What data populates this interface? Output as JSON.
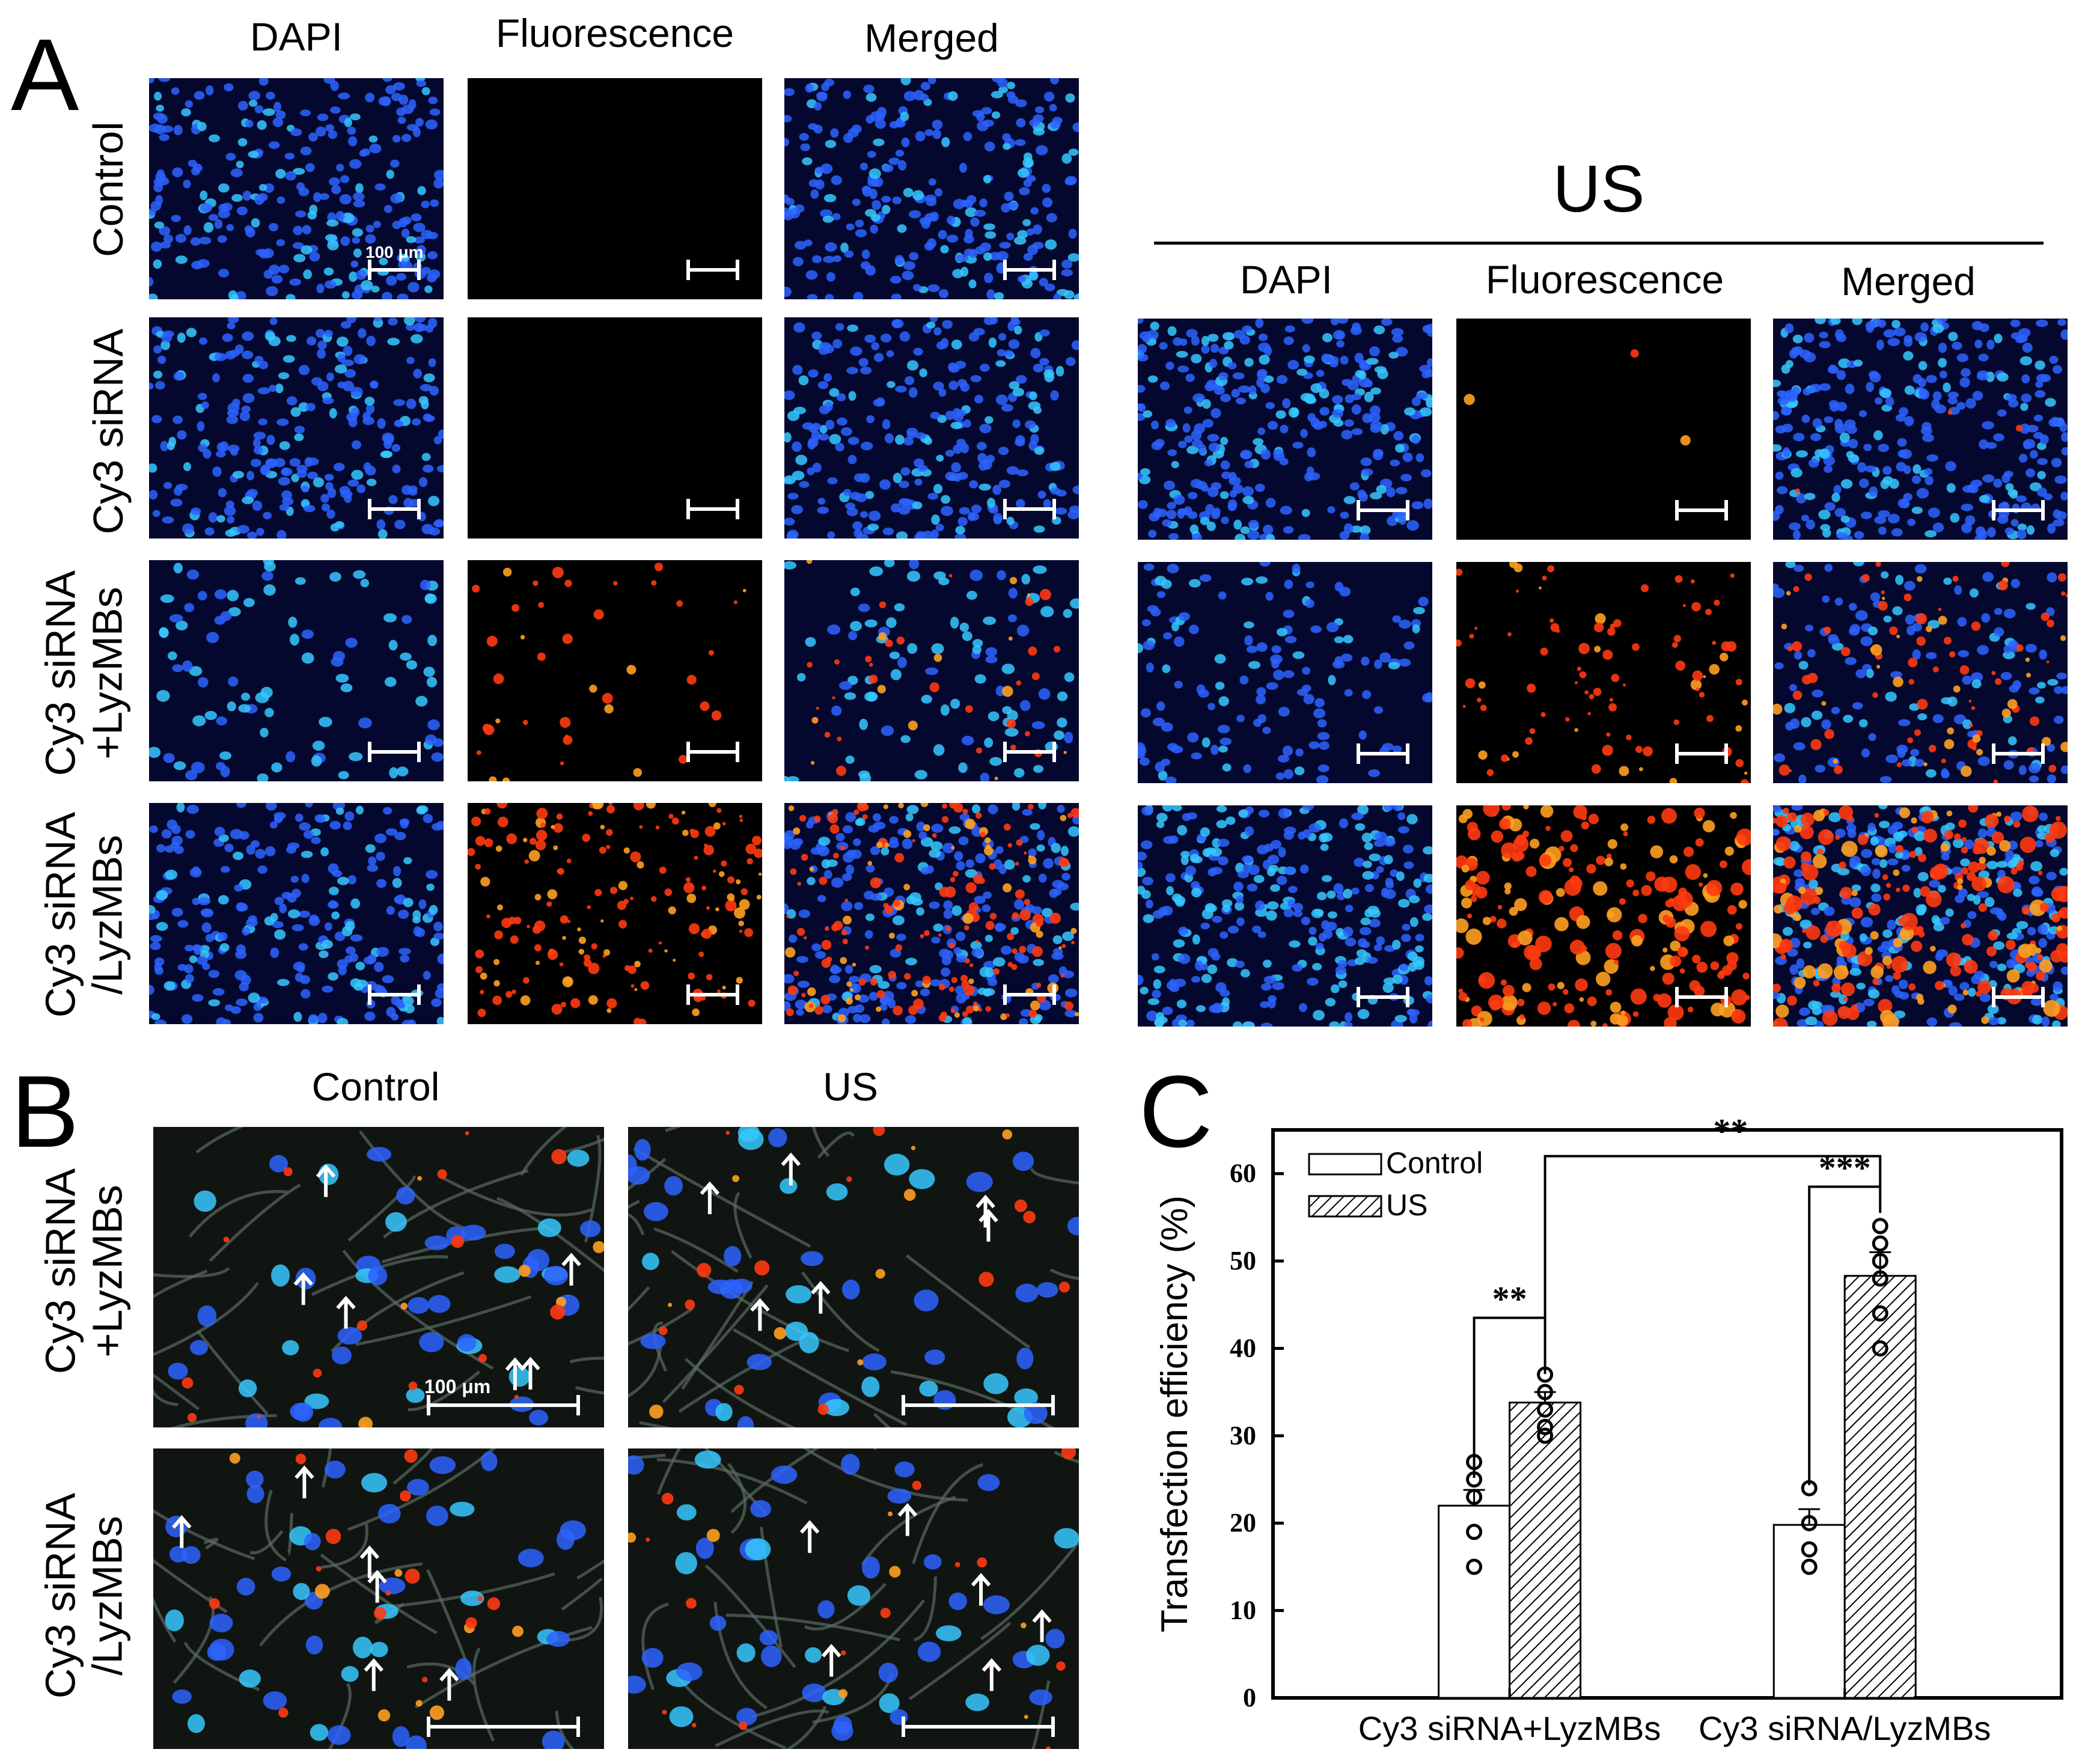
{
  "panelA": {
    "label": "A",
    "columns": [
      "DAPI",
      "Fluorescence",
      "Merged"
    ],
    "rows": [
      {
        "lines": [
          "Control"
        ]
      },
      {
        "lines": [
          "Cy3 siRNA"
        ]
      },
      {
        "lines": [
          "Cy3 siRNA",
          "+LyzMBs"
        ]
      },
      {
        "lines": [
          "Cy3 siRNA",
          "/LyzMBs"
        ]
      }
    ],
    "scalebar_label": "100 μm",
    "us_title": "US",
    "us_columns": [
      "DAPI",
      "Fluorescence",
      "Merged"
    ]
  },
  "panelB": {
    "label": "B",
    "columns": [
      "Control",
      "US"
    ],
    "rows": [
      {
        "lines": [
          "Cy3 siRNA",
          "+LyzMBs"
        ]
      },
      {
        "lines": [
          "Cy3 siRNA",
          "/LyzMBs"
        ]
      }
    ],
    "scalebar_label": "100 μm"
  },
  "panelC": {
    "label": "C",
    "chart_data": {
      "type": "bar",
      "categories": [
        "Cy3 siRNA+LyzMBs",
        "Cy3 siRNA/LyzMBs"
      ],
      "series": [
        {
          "name": "Control",
          "values": [
            22.0,
            19.8
          ],
          "errors": [
            1.8,
            1.8
          ],
          "points": [
            [
              27,
              25,
              23,
              19,
              15
            ],
            [
              24,
              20,
              17,
              15
            ]
          ],
          "pattern": "open"
        },
        {
          "name": "US",
          "values": [
            33.8,
            48.3
          ],
          "errors": [
            1.2,
            2.7
          ],
          "points": [
            [
              37,
              35,
              33,
              31,
              30
            ],
            [
              54,
              52,
              50,
              48,
              44,
              40
            ]
          ],
          "pattern": "hatched"
        }
      ],
      "ylabel": "Transfection efficiency (%)",
      "ylim": [
        0,
        65
      ],
      "yticks": [
        0,
        10,
        20,
        30,
        40,
        50,
        60
      ],
      "legend_position": "top-left",
      "significance": [
        "**",
        "**",
        "***"
      ]
    }
  },
  "colors": {
    "dapi_background": "#05082e",
    "nucleus_blue": "#2d63ff",
    "nucleus_cyan": "#36c8ff",
    "cy3_red": "#ff3a10",
    "cy3_orange": "#ffa020"
  }
}
